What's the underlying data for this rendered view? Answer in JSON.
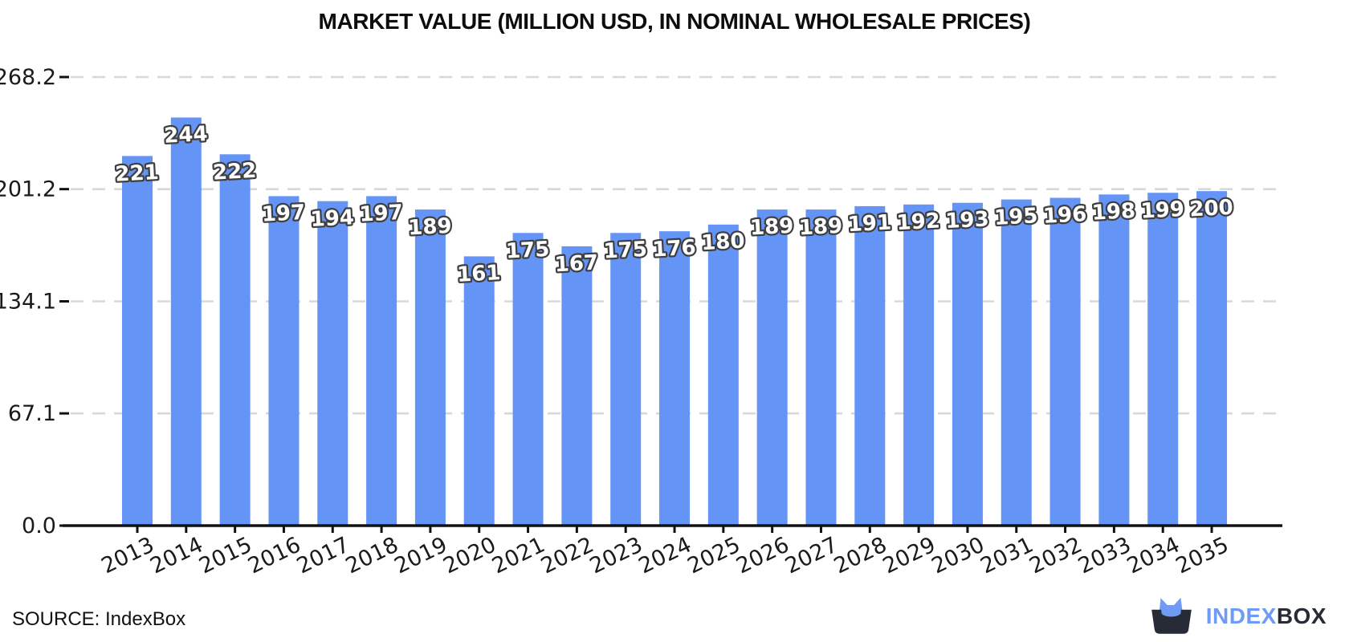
{
  "chart_data": {
    "type": "bar",
    "title": "MARKET VALUE (MILLION USD, IN NOMINAL WHOLESALE PRICES)",
    "categories": [
      "2013",
      "2014",
      "2015",
      "2016",
      "2017",
      "2018",
      "2019",
      "2020",
      "2021",
      "2022",
      "2023",
      "2024",
      "2025",
      "2026",
      "2027",
      "2028",
      "2029",
      "2030",
      "2031",
      "2032",
      "2033",
      "2034",
      "2035"
    ],
    "values": [
      221,
      244,
      222,
      197,
      194,
      197,
      189,
      161,
      175,
      167,
      175,
      176,
      180,
      189,
      189,
      191,
      192,
      193,
      195,
      196,
      198,
      199,
      200
    ],
    "xlabel": "",
    "ylabel": "",
    "ylim": [
      0,
      268.2
    ],
    "ytick_values": [
      0,
      67.1,
      134.1,
      201.2,
      268.2
    ],
    "ytick_labels": [
      "0.0",
      "67.1",
      "134.1",
      "201.2",
      "268.2"
    ],
    "grid": "horizontal-dashed",
    "legend_position": "none",
    "bar_labels_shown": true
  },
  "footer": {
    "source": "SOURCE: IndexBox",
    "logo": {
      "index": "INDEX",
      "box": "BOX"
    }
  },
  "colors": {
    "bar": "#6494F6",
    "grid": "#d8d8d8",
    "axis": "#111111",
    "tick_text": "#1a1a1a",
    "bar_label_fill": "#ffffff",
    "bar_label_stroke": "#3f3f3f",
    "logo_blue": "#6F9BF4",
    "logo_dark": "#262B36",
    "title_text": "#0d0d0d"
  }
}
